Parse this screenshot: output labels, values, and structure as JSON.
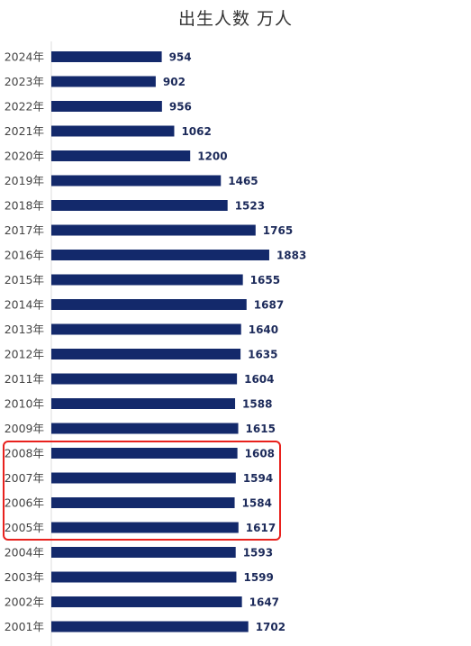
{
  "chart_data": {
    "type": "bar",
    "orientation": "horizontal",
    "title": "出生人数 万人",
    "xlabel": "",
    "ylabel": "",
    "categories": [
      "2024年",
      "2023年",
      "2022年",
      "2021年",
      "2020年",
      "2019年",
      "2018年",
      "2017年",
      "2016年",
      "2015年",
      "2014年",
      "2013年",
      "2012年",
      "2011年",
      "2010年",
      "2009年",
      "2008年",
      "2007年",
      "2006年",
      "2005年",
      "2004年",
      "2003年",
      "2002年",
      "2001年"
    ],
    "values": [
      954,
      902,
      956,
      1062,
      1200,
      1465,
      1523,
      1765,
      1883,
      1655,
      1687,
      1640,
      1635,
      1604,
      1588,
      1615,
      1608,
      1594,
      1584,
      1617,
      1593,
      1599,
      1647,
      1702
    ],
    "highlighted_categories": [
      "2008年",
      "2007年",
      "2006年",
      "2005年"
    ],
    "grid": false,
    "legend": "none"
  },
  "colors": {
    "bar": "#13296b",
    "value_text": "#1c2a5a",
    "axis_line": "#dcdcdc",
    "highlight_border": "#e8211d",
    "title_text": "#333333"
  }
}
